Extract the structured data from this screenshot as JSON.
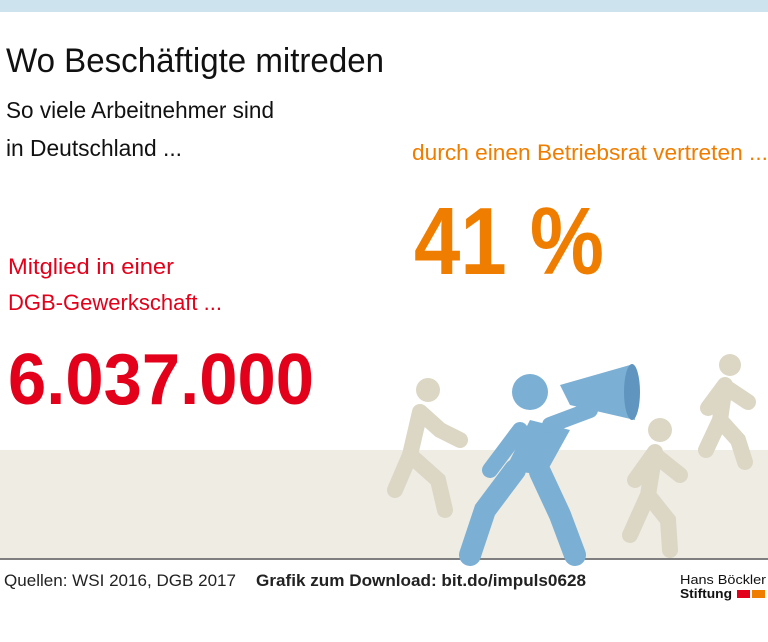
{
  "header": {
    "title": "Wo Beschäftigte mitreden",
    "subtitle": [
      "So viele Arbeitnehmer sind",
      "in Deutschland ..."
    ]
  },
  "stats": [
    {
      "label": [
        "Mitglied in einer",
        "DGB-Gewerkschaft ..."
      ],
      "value": "6.037.000"
    },
    {
      "label": [
        "durch einen Betriebsrat vertreten ..."
      ],
      "value": "41 %"
    }
  ],
  "footer": {
    "sources": "Quellen: WSI 2016, DGB 2017",
    "download": "Grafik zum Download: bit.do/impuls0628",
    "logo": [
      "Hans Böckler",
      "Stiftung"
    ]
  }
}
